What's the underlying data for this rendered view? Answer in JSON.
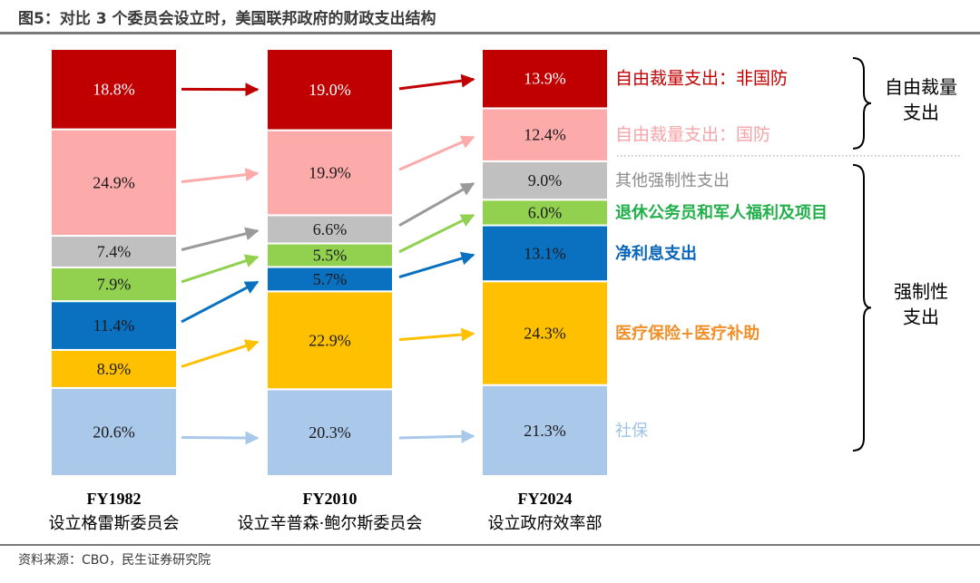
{
  "title": "图5：对比 3 个委员会设立时，美国联邦政府的财政支出结构",
  "source": "资料来源：CBO，民生证券研究院",
  "chart_data": {
    "type": "bar",
    "stacked": true,
    "percent": true,
    "categories": [
      {
        "year": "FY1982",
        "name": "设立格雷斯委员会"
      },
      {
        "year": "FY2010",
        "name": "设立辛普森·鲍尔斯委员会"
      },
      {
        "year": "FY2024",
        "name": "设立政府效率部"
      }
    ],
    "series": [
      {
        "name": "社保",
        "color": "#a9c8ea",
        "label_color": "#9dc3e6",
        "values": [
          20.6,
          20.3,
          21.3
        ],
        "labels": [
          "20.6%",
          "20.3%",
          "21.3%"
        ]
      },
      {
        "name": "医疗保险+医疗补助",
        "color": "#fec000",
        "label_color": "#f0902a",
        "values": [
          8.9,
          22.9,
          24.3
        ],
        "labels": [
          "8.9%",
          "22.9%",
          "24.3%"
        ]
      },
      {
        "name": "净利息支出",
        "color": "#0a70c0",
        "label_color": "#0a66b8",
        "values": [
          11.4,
          5.7,
          13.1
        ],
        "labels": [
          "11.4%",
          "5.7%",
          "13.1%"
        ]
      },
      {
        "name": "退休公务员和军人福利及项目",
        "color": "#92d050",
        "label_color": "#22b04a",
        "values": [
          7.9,
          5.5,
          6.0
        ],
        "labels": [
          "7.9%",
          "5.5%",
          "6.0%"
        ]
      },
      {
        "name": "其他强制性支出",
        "color": "#c0c0c0",
        "label_color": "#8c8c8c",
        "values": [
          7.4,
          6.6,
          9.0
        ],
        "labels": [
          "7.4%",
          "6.6%",
          "9.0%"
        ]
      },
      {
        "name": "自由裁量支出：国防",
        "color": "#fdaaaa",
        "label_color": "#f6a4a8",
        "values": [
          24.9,
          19.9,
          12.4
        ],
        "labels": [
          "24.9%",
          "19.9%",
          "12.4%"
        ]
      },
      {
        "name": "自由裁量支出：非国防",
        "color": "#c00000",
        "label_color": "#c00000",
        "values": [
          18.8,
          19.0,
          13.9
        ],
        "labels": [
          "18.8%",
          "19.0%",
          "13.9%"
        ]
      }
    ],
    "groups": [
      {
        "name": "自由裁量支出",
        "lines": [
          "自由裁量",
          "支出"
        ],
        "series": [
          "自由裁量支出：非国防",
          "自由裁量支出：国防"
        ]
      },
      {
        "name": "强制性支出",
        "lines": [
          "强制性",
          "支出"
        ],
        "series": [
          "其他强制性支出",
          "退休公务员和军人福利及项目",
          "净利息支出",
          "医疗保险+医疗补助",
          "社保"
        ]
      }
    ],
    "ylim": [
      0,
      100
    ]
  }
}
